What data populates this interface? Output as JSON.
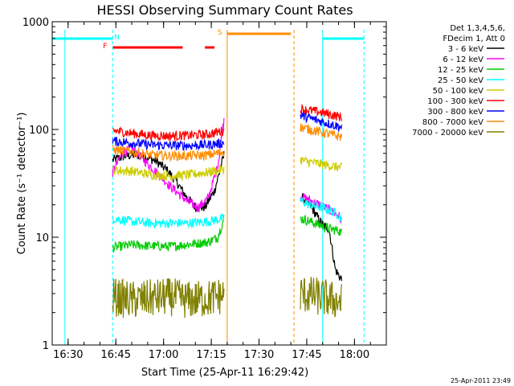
{
  "chart_data": {
    "type": "line",
    "title": "HESSI Observing Summary Count Rates",
    "xlabel": "Start Time (25-Apr-11 16:29:42)",
    "ylabel": "Count Rate (s⁻¹ detector⁻¹)",
    "y_scale": "log",
    "ylim": [
      1,
      1000
    ],
    "xlim": [
      "16:25",
      "18:10"
    ],
    "x_ticks": [
      "16:30",
      "16:45",
      "17:00",
      "17:15",
      "17:30",
      "17:45",
      "18:00"
    ],
    "y_ticks": [
      "1",
      "10",
      "100",
      "1000"
    ],
    "grid": false,
    "legend_position": "right",
    "legend_header": [
      "Det 1,3,4,5,6,",
      "FDecim 1, Att 0"
    ],
    "footer_timestamp": "25-Apr-2011 23:49",
    "flags": [
      {
        "label": "N",
        "color": "#00ffff",
        "segments": [
          [
            "16:25",
            "16:44"
          ],
          [
            "17:50",
            "18:03"
          ]
        ]
      },
      {
        "label": "F",
        "color": "#ff0000",
        "segments": [
          [
            "16:44",
            "17:06"
          ],
          [
            "17:13",
            "17:16"
          ]
        ]
      },
      {
        "label": "S",
        "color": "#ff8c00",
        "segments": [
          [
            "17:20",
            "17:40"
          ]
        ]
      }
    ],
    "series": [
      {
        "name": "3 - 6 keV",
        "color": "#000000",
        "segments": [
          {
            "x": [
              "16:44",
              "16:48",
              "16:52",
              "16:55",
              "16:58",
              "17:01",
              "17:04",
              "17:07",
              "17:10",
              "17:13",
              "17:16",
              "17:19"
            ],
            "y": [
              52,
              57,
              58,
              55,
              50,
              42,
              33,
              24,
              19,
              19,
              27,
              58
            ]
          },
          {
            "x": [
              "17:43",
              "17:46",
              "17:48",
              "17:50",
              "17:52",
              "17:54",
              "17:56"
            ],
            "y": [
              24,
              20,
              16,
              13,
              12,
              5,
              4
            ]
          }
        ]
      },
      {
        "name": "6 - 12 keV",
        "color": "#ff00ff",
        "segments": [
          {
            "x": [
              "16:44",
              "16:47",
              "16:50",
              "16:53",
              "16:56",
              "16:59",
              "17:02",
              "17:05",
              "17:08",
              "17:11",
              "17:14",
              "17:17",
              "17:19"
            ],
            "y": [
              40,
              60,
              67,
              55,
              45,
              37,
              30,
              25,
              21,
              19,
              23,
              45,
              125
            ]
          },
          {
            "x": [
              "17:43",
              "17:46",
              "17:49",
              "17:52",
              "17:55",
              "17:56"
            ],
            "y": [
              24,
              22,
              20,
              18,
              16,
              14
            ]
          }
        ]
      },
      {
        "name": "12 - 25 keV",
        "color": "#00cc00",
        "segments": [
          {
            "x": [
              "16:44",
              "16:50",
              "16:56",
              "17:02",
              "17:08",
              "17:14",
              "17:17",
              "17:19"
            ],
            "y": [
              8,
              8.5,
              8.3,
              8.2,
              8.6,
              9,
              10,
              15
            ]
          },
          {
            "x": [
              "17:43",
              "17:46",
              "17:49",
              "17:52",
              "17:55",
              "17:56"
            ],
            "y": [
              15,
              14,
              13,
              12,
              11.5,
              11
            ]
          }
        ]
      },
      {
        "name": "25 - 50 keV",
        "color": "#00ffff",
        "segments": [
          {
            "x": [
              "16:44",
              "16:50",
              "16:56",
              "17:02",
              "17:08",
              "17:14",
              "17:19"
            ],
            "y": [
              15,
              14,
              13.5,
              13.5,
              13.5,
              14,
              15
            ]
          },
          {
            "x": [
              "17:43",
              "17:46",
              "17:49",
              "17:52",
              "17:55",
              "17:56"
            ],
            "y": [
              22,
              20,
              19,
              18,
              16,
              15
            ]
          }
        ]
      },
      {
        "name": "50 - 100 keV",
        "color": "#cccc00",
        "segments": [
          {
            "x": [
              "16:44",
              "16:50",
              "16:56",
              "17:02",
              "17:08",
              "17:14",
              "17:19"
            ],
            "y": [
              42,
              41,
              38,
              37,
              38,
              40,
              43
            ]
          },
          {
            "x": [
              "17:43",
              "17:49",
              "17:56"
            ],
            "y": [
              52,
              48,
              44
            ]
          }
        ]
      },
      {
        "name": "100 - 300 keV",
        "color": "#ff0000",
        "segments": [
          {
            "x": [
              "16:44",
              "16:50",
              "16:56",
              "17:02",
              "17:08",
              "17:14",
              "17:19"
            ],
            "y": [
              98,
              92,
              88,
              87,
              88,
              90,
              98
            ]
          },
          {
            "x": [
              "17:43",
              "17:49",
              "17:56"
            ],
            "y": [
              155,
              145,
              130
            ]
          }
        ]
      },
      {
        "name": "300 - 800 keV",
        "color": "#0000ff",
        "segments": [
          {
            "x": [
              "16:44",
              "16:50",
              "16:56",
              "17:02",
              "17:08",
              "17:14",
              "17:19"
            ],
            "y": [
              78,
              75,
              72,
              71,
              71,
              72,
              75
            ]
          },
          {
            "x": [
              "17:43",
              "17:49",
              "17:56"
            ],
            "y": [
              135,
              120,
              105
            ]
          }
        ]
      },
      {
        "name": "800 - 7000 keV",
        "color": "#ff8c00",
        "segments": [
          {
            "x": [
              "16:44",
              "16:50",
              "16:56",
              "17:02",
              "17:08",
              "17:14",
              "17:19"
            ],
            "y": [
              65,
              62,
              58,
              57,
              57,
              58,
              62
            ]
          },
          {
            "x": [
              "17:43",
              "17:49",
              "17:56"
            ],
            "y": [
              105,
              95,
              85
            ]
          }
        ]
      },
      {
        "name": "7000 - 20000 keV",
        "color": "#808000",
        "segments": [
          {
            "x": [
              "16:44",
              "16:50",
              "16:56",
              "17:02",
              "17:08",
              "17:14",
              "17:19"
            ],
            "y": [
              2.8,
              2.6,
              2.7,
              2.8,
              2.6,
              2.7,
              2.9
            ]
          },
          {
            "x": [
              "17:43",
              "17:49",
              "17:56"
            ],
            "y": [
              3,
              2.8,
              2.5
            ]
          }
        ]
      }
    ]
  }
}
